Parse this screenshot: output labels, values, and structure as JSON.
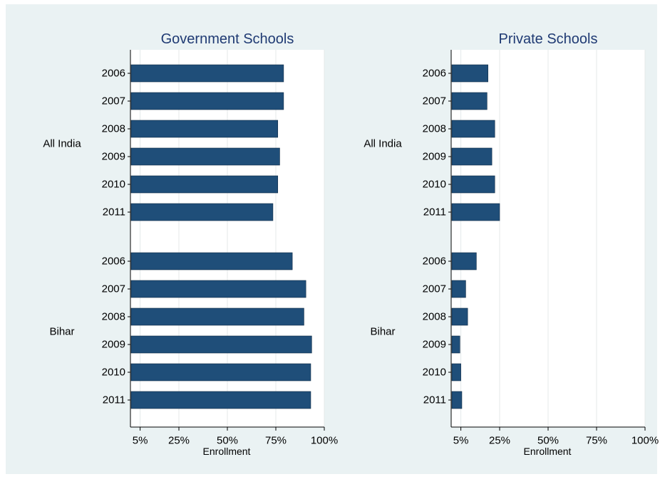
{
  "chart_data": [
    {
      "type": "bar",
      "orientation": "horizontal",
      "title": "Government Schools",
      "xlabel": "Enrollment",
      "xlim": [
        0,
        100
      ],
      "x_ticks": [
        "5%",
        "25%",
        "50%",
        "75%",
        "100%"
      ],
      "x_tick_values": [
        5,
        25,
        50,
        75,
        100
      ],
      "grid": true,
      "groups": [
        {
          "name": "All India",
          "categories": [
            "2006",
            "2007",
            "2008",
            "2009",
            "2010",
            "2011"
          ],
          "values": [
            79,
            79,
            76,
            77,
            76,
            73.5
          ]
        },
        {
          "name": "Bihar",
          "categories": [
            "2006",
            "2007",
            "2008",
            "2009",
            "2010",
            "2011"
          ],
          "values": [
            83.5,
            90.5,
            89.5,
            93.5,
            93,
            93
          ]
        }
      ]
    },
    {
      "type": "bar",
      "orientation": "horizontal",
      "title": "Private Schools",
      "xlabel": "Enrollment",
      "xlim": [
        0,
        100
      ],
      "x_ticks": [
        "5%",
        "25%",
        "50%",
        "75%",
        "100%"
      ],
      "x_tick_values": [
        5,
        25,
        50,
        75,
        100
      ],
      "grid": true,
      "groups": [
        {
          "name": "All India",
          "categories": [
            "2006",
            "2007",
            "2008",
            "2009",
            "2010",
            "2011"
          ],
          "values": [
            19,
            18.5,
            22.5,
            21,
            22.5,
            25
          ]
        },
        {
          "name": "Bihar",
          "categories": [
            "2006",
            "2007",
            "2008",
            "2009",
            "2010",
            "2011"
          ],
          "values": [
            13,
            7.5,
            8.5,
            4.5,
            5,
            5.5
          ]
        }
      ]
    }
  ],
  "colors": {
    "bar": "#1f4e79",
    "outer_background": "#eaf2f3",
    "plot_background": "#ffffff",
    "grid": "#e4e9ea",
    "title": "#1f3a73",
    "text": "#000000",
    "axis": "#000000"
  }
}
